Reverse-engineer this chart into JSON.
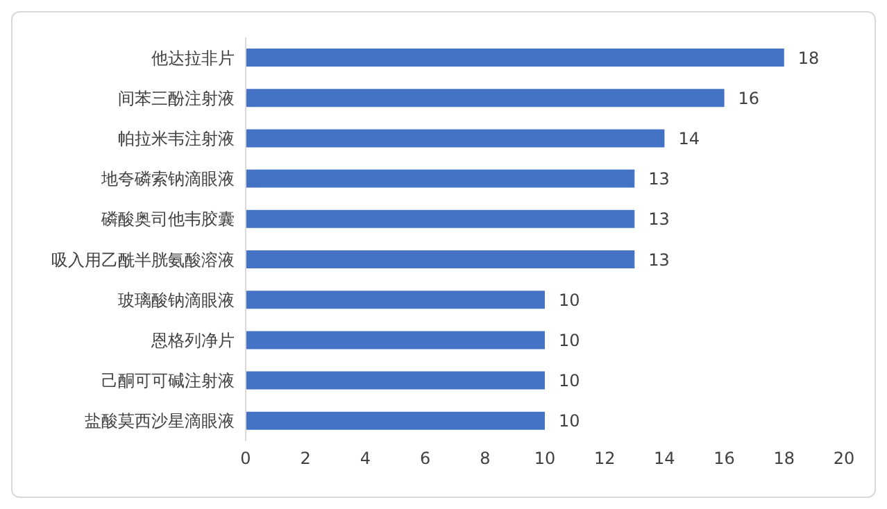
{
  "chart_data": {
    "type": "bar",
    "orientation": "horizontal",
    "categories": [
      "他达拉非片",
      "间苯三酚注射液",
      "帕拉米韦注射液",
      "地夸磷索钠滴眼液",
      "磷酸奥司他韦胶囊",
      "吸入用乙酰半胱氨酸溶液",
      "玻璃酸钠滴眼液",
      "恩格列净片",
      "己酮可可碱注射液",
      "盐酸莫西沙星滴眼液"
    ],
    "values": [
      18,
      16,
      14,
      13,
      13,
      13,
      10,
      10,
      10,
      10
    ],
    "color": "#4472c4",
    "xlim": [
      0,
      20
    ],
    "xticks": [
      0,
      2,
      4,
      6,
      8,
      10,
      12,
      14,
      16,
      18,
      20
    ],
    "grid": false,
    "legend": false,
    "data_labels": true
  }
}
